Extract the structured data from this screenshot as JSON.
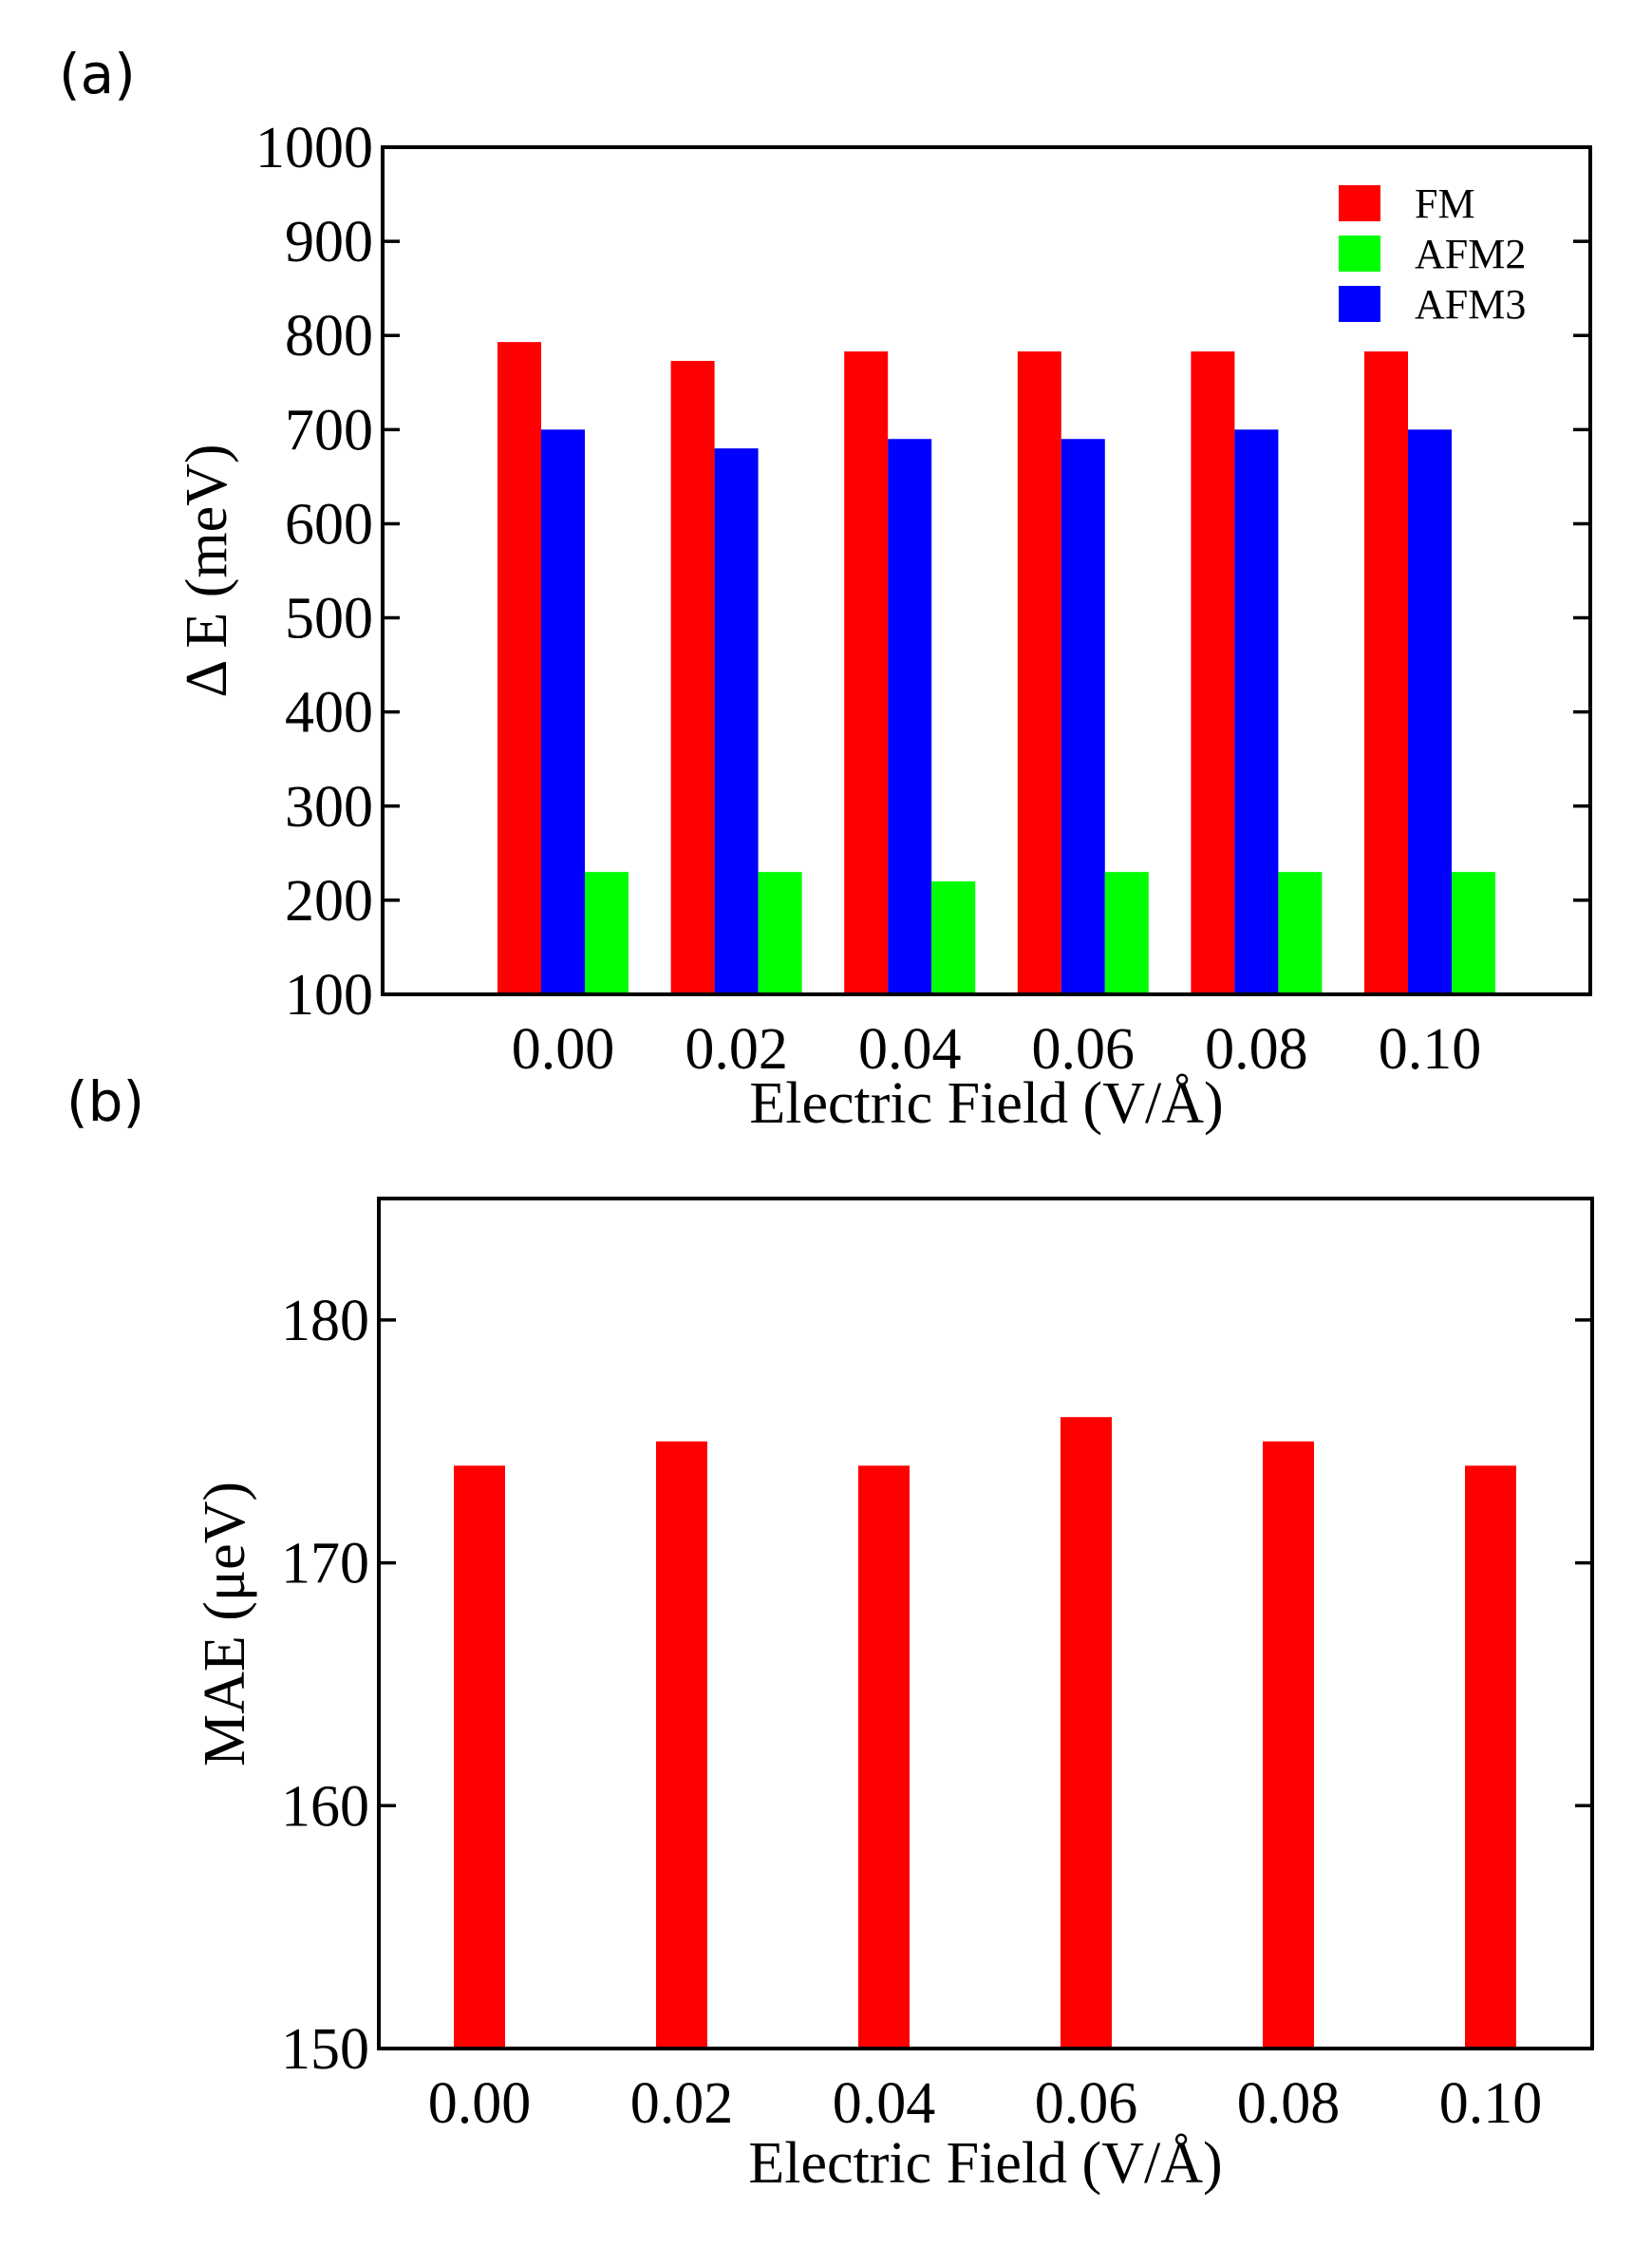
{
  "panels": [
    {
      "label": "(a)"
    },
    {
      "label": "(b)"
    }
  ],
  "chart_data": [
    {
      "type": "bar",
      "panel": "(a)",
      "categories": [
        "0.00",
        "0.02",
        "0.04",
        "0.06",
        "0.08",
        "0.10"
      ],
      "series": [
        {
          "name": "FM",
          "color": "#ff0000",
          "values": [
            793,
            773,
            783,
            783,
            783,
            783
          ]
        },
        {
          "name": "AFM2",
          "color": "#00ff00",
          "values": [
            230,
            230,
            220,
            230,
            230,
            230
          ]
        },
        {
          "name": "AFM3",
          "color": "#0000ff",
          "values": [
            700,
            680,
            690,
            690,
            700,
            700
          ]
        }
      ],
      "bar_order": [
        "FM",
        "AFM3",
        "AFM2"
      ],
      "xlabel": "Electric Field (V/Å)",
      "ylabel": "Δ E (meV)",
      "ylim": [
        100,
        1000
      ],
      "yticks": [
        "100",
        "200",
        "300",
        "400",
        "500",
        "600",
        "700",
        "800",
        "900",
        "1000"
      ],
      "legend_position": "top-right",
      "grid": false
    },
    {
      "type": "bar",
      "panel": "(b)",
      "categories": [
        "0.00",
        "0.02",
        "0.04",
        "0.06",
        "0.08",
        "0.10"
      ],
      "series": [
        {
          "name": "",
          "color": "#ff0000",
          "values": [
            174,
            175,
            174,
            176,
            175,
            174
          ]
        }
      ],
      "xlabel": "Electric Field (V/Å)",
      "ylabel": "MAE (μeV)",
      "ylim": [
        150,
        185
      ],
      "yticks": [
        "150",
        "160",
        "170",
        "180"
      ],
      "grid": false
    }
  ]
}
